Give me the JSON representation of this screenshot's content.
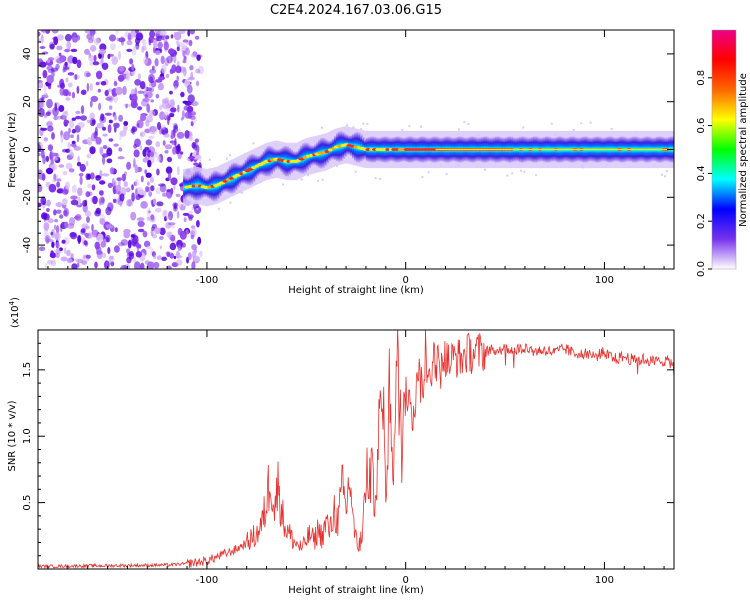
{
  "figure": {
    "title": "C2E4.2024.167.03.06.G15"
  },
  "chart_data": [
    {
      "type": "heatmap",
      "xlabel": "Height of straight line (km)",
      "ylabel": "Frequency (Hz)",
      "xlim": [
        -185,
        135
      ],
      "ylim": [
        -50,
        50
      ],
      "x_ticks": [
        -100,
        0,
        100
      ],
      "y_ticks": [
        -40,
        -20,
        0,
        20,
        40
      ],
      "grid": false,
      "noise_region_x": [
        -185,
        -110
      ],
      "signal_band_offset": [
        [
          -112,
          -16
        ],
        [
          -105,
          -15
        ],
        [
          -100,
          -16
        ],
        [
          -95,
          -15
        ],
        [
          -90,
          -13
        ],
        [
          -85,
          -11
        ],
        [
          -80,
          -9
        ],
        [
          -75,
          -7
        ],
        [
          -70,
          -5
        ],
        [
          -65,
          -4
        ],
        [
          -60,
          -5
        ],
        [
          -55,
          -5
        ],
        [
          -50,
          -3
        ],
        [
          -45,
          -2
        ],
        [
          -40,
          -1
        ],
        [
          -35,
          1
        ],
        [
          -30,
          2
        ],
        [
          -25,
          1
        ],
        [
          -20,
          0
        ],
        [
          -10,
          0
        ],
        [
          0,
          0
        ],
        [
          10,
          0
        ],
        [
          20,
          0
        ],
        [
          50,
          0
        ],
        [
          100,
          0
        ],
        [
          135,
          0
        ]
      ],
      "colorbar": {
        "label": "Normalized spectral amplitude",
        "range": [
          0,
          1
        ],
        "ticks": [
          0.0,
          0.2,
          0.4,
          0.6,
          0.8
        ],
        "colors": [
          "#ffffff",
          "#7733ee",
          "#0000ff",
          "#00ffff",
          "#00ff00",
          "#ffff00",
          "#ff6600",
          "#ff0000",
          "#ee0088"
        ]
      }
    },
    {
      "type": "line",
      "xlabel": "Height of straight line (km)",
      "ylabel": "SNR (10 * v/v)",
      "y_multiplier": "(x10",
      "y_multiplier_exp": "4",
      "y_multiplier_close": ")",
      "xlim": [
        -185,
        135
      ],
      "ylim": [
        0,
        18000
      ],
      "x_ticks": [
        -100,
        0,
        100
      ],
      "y_ticks": [
        0.5,
        1.0,
        1.5
      ],
      "y_tick_labels": [
        "0.5",
        "1.0",
        "1.5"
      ],
      "grid": false,
      "series": [
        {
          "color": "#e8312d",
          "x": [
            -185,
            -150,
            -120,
            -110,
            -100,
            -95,
            -90,
            -85,
            -80,
            -75,
            -72,
            -70,
            -68,
            -66,
            -64,
            -62,
            -60,
            -58,
            -56,
            -54,
            -52,
            -50,
            -48,
            -46,
            -44,
            -42,
            -40,
            -38,
            -36,
            -34,
            -32,
            -30,
            -28,
            -26,
            -24,
            -22,
            -20,
            -18,
            -16,
            -14,
            -12,
            -10,
            -8,
            -6,
            -4,
            -2,
            0,
            2,
            4,
            6,
            8,
            10,
            12,
            14,
            16,
            18,
            20,
            22,
            25,
            28,
            30,
            35,
            40,
            45,
            50,
            55,
            60,
            65,
            70,
            75,
            80,
            85,
            90,
            95,
            100,
            105,
            110,
            115,
            120,
            125,
            130,
            135
          ],
          "values": [
            200,
            250,
            300,
            400,
            600,
            900,
            1200,
            1500,
            2000,
            2600,
            3500,
            5000,
            7500,
            4500,
            6500,
            4000,
            3000,
            2500,
            2000,
            1800,
            1500,
            2200,
            2600,
            2100,
            3000,
            2400,
            3500,
            2800,
            4500,
            3500,
            6000,
            4500,
            7000,
            3000,
            1500,
            2500,
            6000,
            7800,
            5500,
            9000,
            12000,
            7000,
            13000,
            9000,
            14500,
            10000,
            13000,
            14000,
            11000,
            15500,
            13500,
            15000,
            14500,
            16000,
            15500,
            15000,
            16000,
            15500,
            16000,
            15800,
            16200,
            16300,
            16400,
            16500,
            16600,
            16500,
            16700,
            16400,
            16500,
            16300,
            16600,
            16200,
            16400,
            16000,
            16300,
            15800,
            16000,
            15700,
            15800,
            15600,
            15700,
            15500
          ]
        }
      ]
    }
  ]
}
